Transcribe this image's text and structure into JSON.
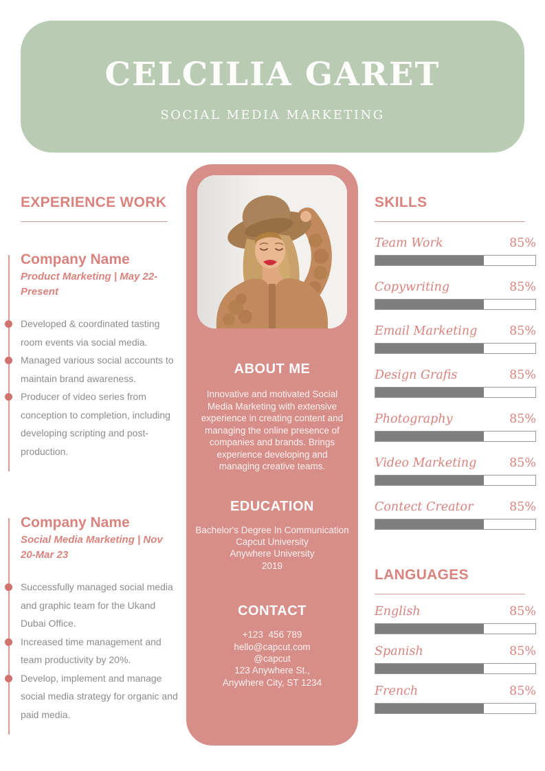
{
  "header": {
    "name": "CELCILIA GARET",
    "subtitle": "SOCIAL MEDIA MARKETING"
  },
  "experience": {
    "title": "EXPERIENCE WORK",
    "jobs": [
      {
        "company": "Company Name",
        "meta": "Product Marketing | May 22-Present",
        "bullets": [
          "Developed & coordinated tasting room events via social media.",
          "Managed various social accounts to maintain brand awareness.",
          "Producer of video series from conception to completion, including developing scripting and post-production."
        ]
      },
      {
        "company": "Company Name",
        "meta": "Social Media Marketing | Nov 20-Mar 23",
        "bullets": [
          "Successfully managed social media and graphic team for the Ukand Dubai Office.",
          "Increased time management and team productivity by 20%.",
          "Develop, implement and manage social media strategy for organic and paid media."
        ]
      }
    ]
  },
  "profile": {
    "photo_alt": "Portrait photo of a woman wearing a wide-brim hat and knitted cardigan",
    "about": {
      "title": "ABOUT ME",
      "body": "Innovative and motivated Social Media Marketing with extensive experience in creating content and managing the online presence of companies and brands. Brings experience developing and managing creative teams."
    },
    "education": {
      "title": "EDUCATION",
      "lines": [
        "Bachelor's Degree In Communication",
        "Capcut University",
        "Anywhere University",
        "2019"
      ]
    },
    "contact": {
      "title": "CONTACT",
      "lines": [
        "+123  456 789",
        "hello@capcut.com",
        "@capcut",
        "123 Anywhere St.,",
        "Anywhere City, ST 1234"
      ]
    }
  },
  "skills": {
    "title": "SKILLS",
    "items": [
      {
        "label": "Team Work",
        "pct": "85%",
        "fill": 68
      },
      {
        "label": "Copywriting",
        "pct": "85%",
        "fill": 68
      },
      {
        "label": "Email Marketing",
        "pct": "85%",
        "fill": 68
      },
      {
        "label": "Design Grafis",
        "pct": "85%",
        "fill": 68
      },
      {
        "label": "Photography",
        "pct": "85%",
        "fill": 68
      },
      {
        "label": "Video Marketing",
        "pct": "85%",
        "fill": 68
      },
      {
        "label": "Contect Creator",
        "pct": "85%",
        "fill": 68
      }
    ]
  },
  "languages": {
    "title": "LANGUAGES",
    "items": [
      {
        "label": "English",
        "pct": "85%",
        "fill": 68
      },
      {
        "label": "Spanish",
        "pct": "85%",
        "fill": 68
      },
      {
        "label": "French",
        "pct": "85%",
        "fill": 68
      }
    ]
  },
  "colors": {
    "header_bg": "#b9cbb3",
    "panel_bg": "#d78d88",
    "accent_pink": "#d9837e",
    "timeline_dot": "#d0736f",
    "bar_fill": "#7f7f7f",
    "bar_border": "#9a9a9a",
    "body_text": "#8c8c8c"
  }
}
